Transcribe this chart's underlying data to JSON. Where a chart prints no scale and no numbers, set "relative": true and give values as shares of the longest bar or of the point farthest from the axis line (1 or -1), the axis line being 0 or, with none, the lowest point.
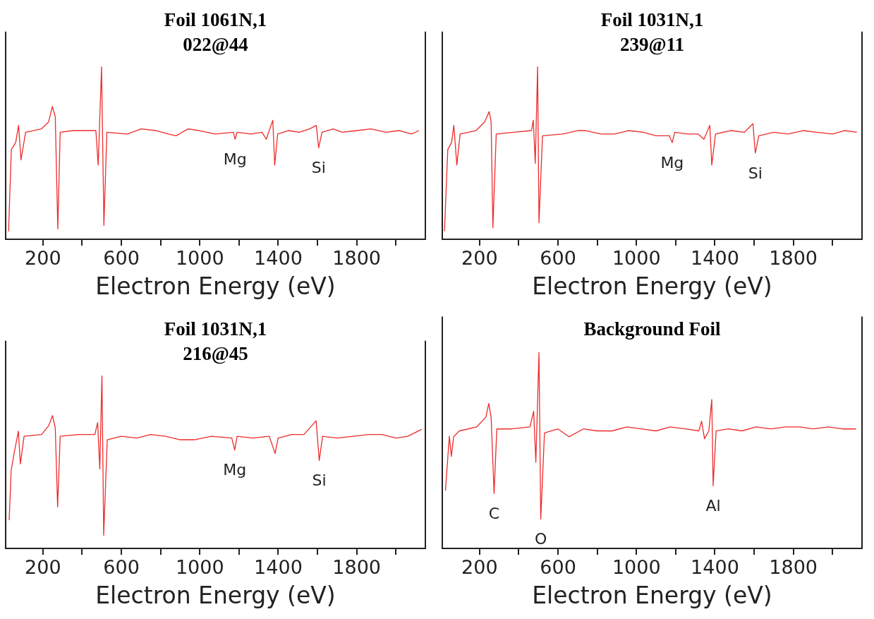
{
  "chart_data": [
    {
      "type": "line",
      "title": "Foil 1061N,1",
      "subtitle": "022@44",
      "xlabel": "Electron Energy (eV)",
      "relative": true,
      "grid": false,
      "legend": false,
      "color": "#ee2b2b",
      "xlim": [
        10,
        2150
      ],
      "xticks": [
        200,
        {
          "value": 400,
          "label": null
        },
        600,
        {
          "value": 800,
          "label": null
        },
        1000,
        {
          "value": 1200,
          "label": null
        },
        1400,
        {
          "value": 1600,
          "label": null
        },
        1800,
        {
          "value": 2000,
          "label": null
        }
      ],
      "x": [
        25,
        39,
        61,
        76,
        88,
        112,
        193,
        229,
        248,
        263,
        276,
        288,
        353,
        470,
        482,
        499,
        511,
        526,
        631,
        700,
        777,
        840,
        879,
        940,
        996,
        1080,
        1171,
        1180,
        1190,
        1260,
        1317,
        1339,
        1372,
        1382,
        1397,
        1450,
        1507,
        1560,
        1594,
        1606,
        1623,
        1680,
        1726,
        1800,
        1872,
        1950,
        2018,
        2080,
        2117
      ],
      "values": [
        0.046,
        0.52,
        0.56,
        0.66,
        0.46,
        0.62,
        0.64,
        0.68,
        0.77,
        0.71,
        0.06,
        0.62,
        0.63,
        0.63,
        0.43,
        1.0,
        0.08,
        0.62,
        0.61,
        0.64,
        0.63,
        0.61,
        0.6,
        0.64,
        0.63,
        0.61,
        0.62,
        0.58,
        0.62,
        0.61,
        0.62,
        0.58,
        0.69,
        0.43,
        0.61,
        0.63,
        0.62,
        0.64,
        0.66,
        0.53,
        0.62,
        0.64,
        0.62,
        0.63,
        0.64,
        0.62,
        0.63,
        0.61,
        0.63
      ],
      "annotations": [
        {
          "text": "Mg",
          "x": 1180,
          "y": 0.58
        },
        {
          "text": "Si",
          "x": 1606,
          "y": 0.53
        }
      ]
    },
    {
      "type": "line",
      "title": "Foil 1031N,1",
      "subtitle": "239@11",
      "xlabel": "Electron Energy (eV)",
      "relative": true,
      "grid": false,
      "legend": false,
      "color": "#ee2b2b",
      "xlim": [
        10,
        2150
      ],
      "xticks": [
        200,
        {
          "value": 400,
          "label": null
        },
        600,
        {
          "value": 800,
          "label": null
        },
        1000,
        {
          "value": 1200,
          "label": null
        },
        1400,
        {
          "value": 1600,
          "label": null
        },
        1800,
        {
          "value": 2000,
          "label": null
        }
      ],
      "x": [
        21,
        38,
        57,
        69,
        84,
        101,
        182,
        226,
        249,
        259,
        268,
        285,
        374,
        465,
        474,
        484,
        496,
        503,
        521,
        624,
        700,
        741,
        820,
        888,
        960,
        1035,
        1100,
        1168,
        1182,
        1195,
        1260,
        1315,
        1344,
        1374,
        1384,
        1403,
        1480,
        1550,
        1594,
        1606,
        1624,
        1700,
        1771,
        1850,
        1918,
        2000,
        2060,
        2124
      ],
      "values": [
        0.046,
        0.52,
        0.56,
        0.66,
        0.43,
        0.61,
        0.63,
        0.68,
        0.74,
        0.68,
        0.067,
        0.61,
        0.62,
        0.63,
        0.69,
        0.44,
        1.0,
        0.096,
        0.6,
        0.61,
        0.63,
        0.63,
        0.61,
        0.61,
        0.63,
        0.62,
        0.6,
        0.6,
        0.56,
        0.62,
        0.61,
        0.61,
        0.58,
        0.66,
        0.43,
        0.61,
        0.63,
        0.62,
        0.67,
        0.5,
        0.6,
        0.62,
        0.61,
        0.63,
        0.62,
        0.61,
        0.63,
        0.62
      ],
      "annotations": [
        {
          "text": "Mg",
          "x": 1182,
          "y": 0.56
        },
        {
          "text": "Si",
          "x": 1606,
          "y": 0.5
        }
      ]
    },
    {
      "type": "line",
      "title": "Foil 1031N,1",
      "subtitle": "216@45",
      "xlabel": "Electron Energy (eV)",
      "relative": true,
      "grid": false,
      "legend": false,
      "color": "#ee2b2b",
      "xlim": [
        10,
        2150
      ],
      "xticks": [
        200,
        {
          "value": 400,
          "label": null
        },
        600,
        {
          "value": 800,
          "label": null
        },
        1000,
        {
          "value": 1200,
          "label": null
        },
        1400,
        {
          "value": 1600,
          "label": null
        },
        1800,
        {
          "value": 2000,
          "label": null
        }
      ],
      "x": [
        28,
        38,
        53,
        75,
        85,
        104,
        193,
        229,
        249,
        263,
        275,
        288,
        384,
        465,
        479,
        490,
        501,
        510,
        528,
        600,
        678,
        750,
        825,
        900,
        972,
        1060,
        1163,
        1178,
        1190,
        1270,
        1354,
        1384,
        1399,
        1470,
        1531,
        1593,
        1609,
        1626,
        1700,
        1781,
        1860,
        1928,
        2000,
        2060,
        2131
      ],
      "values": [
        0.164,
        0.45,
        0.55,
        0.68,
        0.49,
        0.65,
        0.66,
        0.71,
        0.77,
        0.7,
        0.24,
        0.65,
        0.66,
        0.66,
        0.73,
        0.46,
        1.0,
        0.076,
        0.63,
        0.65,
        0.64,
        0.66,
        0.65,
        0.63,
        0.63,
        0.65,
        0.64,
        0.57,
        0.65,
        0.64,
        0.65,
        0.55,
        0.64,
        0.66,
        0.66,
        0.74,
        0.51,
        0.65,
        0.64,
        0.65,
        0.66,
        0.66,
        0.64,
        0.65,
        0.69
      ],
      "annotations": [
        {
          "text": "Mg",
          "x": 1178,
          "y": 0.57
        },
        {
          "text": "Si",
          "x": 1609,
          "y": 0.51
        }
      ]
    },
    {
      "type": "line",
      "title": "Background Foil",
      "xlabel": "Electron Energy (eV)",
      "relative": true,
      "grid": false,
      "legend": false,
      "color": "#ee2b2b",
      "xlim": [
        10,
        2150
      ],
      "xticks": [
        200,
        {
          "value": 400,
          "label": null
        },
        600,
        {
          "value": 800,
          "label": null
        },
        1000,
        {
          "value": 1200,
          "label": null
        },
        1400,
        {
          "value": 1600,
          "label": null
        },
        1800,
        {
          "value": 2000,
          "label": null
        }
      ],
      "x": [
        26,
        46,
        56,
        68,
        97,
        185,
        232,
        247,
        259,
        274,
        288,
        362,
        457,
        476,
        487,
        503,
        512,
        531,
        600,
        656,
        729,
        800,
        876,
        950,
        1024,
        1100,
        1171,
        1250,
        1318,
        1332,
        1347,
        1369,
        1384,
        1391,
        1406,
        1470,
        1538,
        1610,
        1685,
        1760,
        1832,
        1900,
        1979,
        2050,
        2119
      ],
      "values": [
        0.295,
        0.573,
        0.47,
        0.57,
        0.6,
        0.62,
        0.67,
        0.74,
        0.67,
        0.28,
        0.61,
        0.61,
        0.62,
        0.7,
        0.44,
        1.0,
        0.15,
        0.59,
        0.61,
        0.57,
        0.61,
        0.6,
        0.6,
        0.62,
        0.61,
        0.6,
        0.62,
        0.61,
        0.6,
        0.65,
        0.56,
        0.6,
        0.76,
        0.32,
        0.6,
        0.61,
        0.6,
        0.62,
        0.61,
        0.62,
        0.62,
        0.61,
        0.62,
        0.61,
        0.61
      ],
      "annotations": [
        {
          "text": "C",
          "x": 274,
          "y": 0.28
        },
        {
          "text": "O",
          "x": 512,
          "y": 0.15
        },
        {
          "text": "Al",
          "x": 1391,
          "y": 0.32
        }
      ]
    }
  ]
}
